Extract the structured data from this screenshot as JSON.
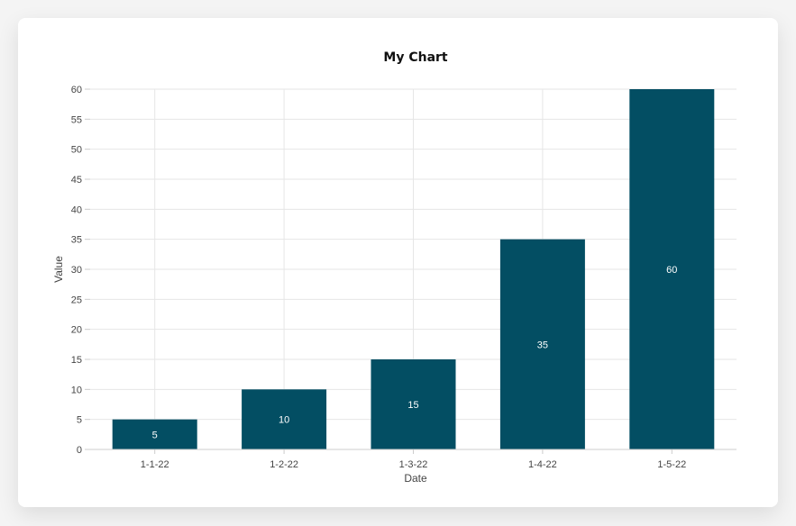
{
  "chart_data": {
    "type": "bar",
    "title": "My Chart",
    "xlabel": "Date",
    "ylabel": "Value",
    "categories": [
      "1-1-22",
      "1-2-22",
      "1-3-22",
      "1-4-22",
      "1-5-22"
    ],
    "values": [
      5,
      10,
      15,
      35,
      60
    ],
    "ylim": [
      0,
      60
    ],
    "yticks": [
      0,
      5,
      10,
      15,
      20,
      25,
      30,
      35,
      40,
      45,
      50,
      55,
      60
    ],
    "grid": true,
    "bar_color": "#034e63",
    "grid_color": "#e6e6e6",
    "data_labels": true
  }
}
